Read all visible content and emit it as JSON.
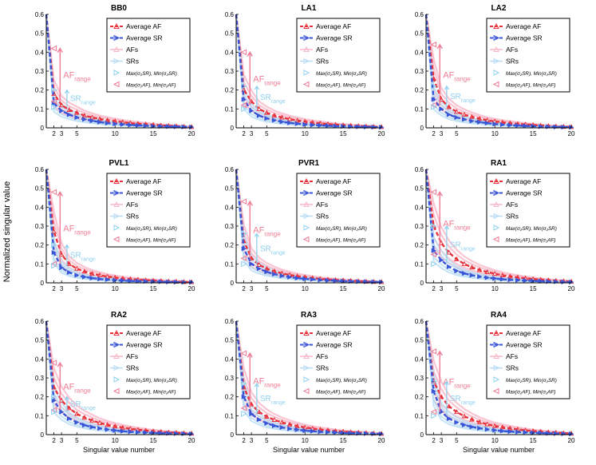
{
  "figure": {
    "ylabel": "Normalized singular value",
    "xlabel": "Singular value number",
    "colors": {
      "af": "#e8323c",
      "sr": "#3a56d8",
      "af_light": "#f7b7c7",
      "sr_light": "#b8dcf4",
      "af_range": "#f07a94",
      "sr_range": "#8fd0ee",
      "axis": "#000000"
    },
    "legend": {
      "average_af": "Average AF",
      "average_sr": "Average SR",
      "afs": "AFs",
      "srs": "SRs",
      "sr_minmax": "Max(σ₂SR), Min(σ₂SR)",
      "af_minmax": "Max(σ₂AF), Min(σ₂AF)"
    },
    "annotations": {
      "af_range": "AF",
      "af_range_sub": "range",
      "sr_range": "SR",
      "sr_range_sub": "range"
    }
  },
  "chart_data": [
    {
      "type": "line",
      "title": "BB0",
      "xlim": [
        1,
        20
      ],
      "ylim": [
        0,
        0.6
      ],
      "xticks": [
        2,
        3,
        5,
        10,
        15,
        20
      ],
      "yticks": [
        0,
        0.1,
        0.2,
        0.3,
        0.4,
        0.5,
        0.6
      ],
      "series": [
        {
          "name": "Average AF",
          "x": [
            1,
            2,
            3,
            4,
            5,
            6,
            7,
            8,
            9,
            10,
            11,
            12,
            13,
            14,
            15,
            16,
            17,
            18,
            19,
            20
          ],
          "values": [
            0.6,
            0.18,
            0.12,
            0.095,
            0.08,
            0.065,
            0.055,
            0.047,
            0.04,
            0.035,
            0.03,
            0.025,
            0.022,
            0.019,
            0.016,
            0.013,
            0.011,
            0.009,
            0.007,
            0.005
          ]
        },
        {
          "name": "Average SR",
          "x": [
            1,
            2,
            3,
            4,
            5,
            6,
            7,
            8,
            9,
            10,
            11,
            12,
            13,
            14,
            15,
            16,
            17,
            18,
            19,
            20
          ],
          "values": [
            0.6,
            0.13,
            0.09,
            0.07,
            0.055,
            0.045,
            0.037,
            0.03,
            0.025,
            0.021,
            0.018,
            0.015,
            0.013,
            0.011,
            0.009,
            0.008,
            0.007,
            0.006,
            0.005,
            0.004
          ]
        }
      ],
      "af_range": [
        0.14,
        0.42
      ],
      "sr_range": [
        0.11,
        0.2
      ]
    },
    {
      "type": "line",
      "title": "LA1",
      "xlim": [
        1,
        20
      ],
      "ylim": [
        0,
        0.6
      ],
      "xticks": [
        2,
        3,
        5,
        10,
        15,
        20
      ],
      "yticks": [
        0,
        0.1,
        0.2,
        0.3,
        0.4,
        0.5,
        0.6
      ],
      "series": [
        {
          "name": "Average AF",
          "x": [
            1,
            2,
            3,
            4,
            5,
            6,
            7,
            8,
            9,
            10,
            11,
            12,
            13,
            14,
            15,
            16,
            17,
            18,
            19,
            20
          ],
          "values": [
            0.6,
            0.2,
            0.14,
            0.1,
            0.08,
            0.065,
            0.055,
            0.046,
            0.039,
            0.033,
            0.028,
            0.024,
            0.02,
            0.017,
            0.014,
            0.012,
            0.01,
            0.008,
            0.006,
            0.005
          ]
        },
        {
          "name": "Average SR",
          "x": [
            1,
            2,
            3,
            4,
            5,
            6,
            7,
            8,
            9,
            10,
            11,
            12,
            13,
            14,
            15,
            16,
            17,
            18,
            19,
            20
          ],
          "values": [
            0.6,
            0.15,
            0.09,
            0.065,
            0.05,
            0.04,
            0.032,
            0.026,
            0.022,
            0.018,
            0.015,
            0.013,
            0.011,
            0.009,
            0.008,
            0.007,
            0.006,
            0.005,
            0.004,
            0.003
          ]
        }
      ],
      "af_range": [
        0.12,
        0.4
      ],
      "sr_range": [
        0.1,
        0.22
      ]
    },
    {
      "type": "line",
      "title": "LA2",
      "xlim": [
        1,
        20
      ],
      "ylim": [
        0,
        0.6
      ],
      "xticks": [
        2,
        3,
        5,
        10,
        15,
        20
      ],
      "yticks": [
        0,
        0.1,
        0.2,
        0.3,
        0.4,
        0.5,
        0.6
      ],
      "series": [
        {
          "name": "Average AF",
          "x": [
            1,
            2,
            3,
            4,
            5,
            6,
            7,
            8,
            9,
            10,
            11,
            12,
            13,
            14,
            15,
            16,
            17,
            18,
            19,
            20
          ],
          "values": [
            0.6,
            0.26,
            0.15,
            0.11,
            0.085,
            0.07,
            0.058,
            0.048,
            0.04,
            0.034,
            0.029,
            0.025,
            0.021,
            0.018,
            0.015,
            0.012,
            0.01,
            0.008,
            0.006,
            0.005
          ]
        },
        {
          "name": "Average SR",
          "x": [
            1,
            2,
            3,
            4,
            5,
            6,
            7,
            8,
            9,
            10,
            11,
            12,
            13,
            14,
            15,
            16,
            17,
            18,
            19,
            20
          ],
          "values": [
            0.6,
            0.15,
            0.1,
            0.07,
            0.055,
            0.045,
            0.036,
            0.03,
            0.025,
            0.02,
            0.017,
            0.014,
            0.012,
            0.01,
            0.009,
            0.007,
            0.006,
            0.005,
            0.004,
            0.003
          ]
        }
      ],
      "af_range": [
        0.12,
        0.44
      ],
      "sr_range": [
        0.11,
        0.22
      ]
    },
    {
      "type": "line",
      "title": "PVL1",
      "xlim": [
        1,
        20
      ],
      "ylim": [
        0,
        0.6
      ],
      "xticks": [
        2,
        3,
        5,
        10,
        15,
        20
      ],
      "yticks": [
        0,
        0.1,
        0.2,
        0.3,
        0.4,
        0.5,
        0.6
      ],
      "series": [
        {
          "name": "Average AF",
          "x": [
            1,
            2,
            3,
            4,
            5,
            6,
            7,
            8,
            9,
            10,
            11,
            12,
            13,
            14,
            15,
            16,
            17,
            18,
            19,
            20
          ],
          "values": [
            0.6,
            0.27,
            0.15,
            0.1,
            0.075,
            0.06,
            0.048,
            0.04,
            0.033,
            0.028,
            0.023,
            0.02,
            0.017,
            0.014,
            0.012,
            0.01,
            0.008,
            0.007,
            0.005,
            0.004
          ]
        },
        {
          "name": "Average SR",
          "x": [
            1,
            2,
            3,
            4,
            5,
            6,
            7,
            8,
            9,
            10,
            11,
            12,
            13,
            14,
            15,
            16,
            17,
            18,
            19,
            20
          ],
          "values": [
            0.6,
            0.16,
            0.08,
            0.055,
            0.04,
            0.031,
            0.025,
            0.02,
            0.017,
            0.014,
            0.012,
            0.01,
            0.009,
            0.008,
            0.007,
            0.006,
            0.005,
            0.004,
            0.003,
            0.003
          ]
        }
      ],
      "af_range": [
        0.1,
        0.48
      ],
      "sr_range": [
        0.09,
        0.2
      ]
    },
    {
      "type": "line",
      "title": "PVR1",
      "xlim": [
        1,
        20
      ],
      "ylim": [
        0,
        0.6
      ],
      "xticks": [
        2,
        3,
        5,
        10,
        15,
        20
      ],
      "yticks": [
        0,
        0.1,
        0.2,
        0.3,
        0.4,
        0.5,
        0.6
      ],
      "series": [
        {
          "name": "Average AF",
          "x": [
            1,
            2,
            3,
            4,
            5,
            6,
            7,
            8,
            9,
            10,
            11,
            12,
            13,
            14,
            15,
            16,
            17,
            18,
            19,
            20
          ],
          "values": [
            0.6,
            0.22,
            0.13,
            0.095,
            0.075,
            0.061,
            0.05,
            0.042,
            0.035,
            0.03,
            0.025,
            0.021,
            0.018,
            0.015,
            0.013,
            0.011,
            0.009,
            0.007,
            0.006,
            0.005
          ]
        },
        {
          "name": "Average SR",
          "x": [
            1,
            2,
            3,
            4,
            5,
            6,
            7,
            8,
            9,
            10,
            11,
            12,
            13,
            14,
            15,
            16,
            17,
            18,
            19,
            20
          ],
          "values": [
            0.6,
            0.18,
            0.1,
            0.075,
            0.058,
            0.046,
            0.037,
            0.03,
            0.025,
            0.021,
            0.018,
            0.015,
            0.013,
            0.011,
            0.009,
            0.008,
            0.007,
            0.006,
            0.005,
            0.004
          ]
        }
      ],
      "af_range": [
        0.13,
        0.43
      ],
      "sr_range": [
        0.1,
        0.26
      ]
    },
    {
      "type": "line",
      "title": "RA1",
      "xlim": [
        1,
        20
      ],
      "ylim": [
        0,
        0.6
      ],
      "xticks": [
        2,
        3,
        5,
        10,
        15,
        20
      ],
      "yticks": [
        0,
        0.1,
        0.2,
        0.3,
        0.4,
        0.5,
        0.6
      ],
      "series": [
        {
          "name": "Average AF",
          "x": [
            1,
            2,
            3,
            4,
            5,
            6,
            7,
            8,
            9,
            10,
            11,
            12,
            13,
            14,
            15,
            16,
            17,
            18,
            19,
            20
          ],
          "values": [
            0.6,
            0.3,
            0.21,
            0.16,
            0.125,
            0.1,
            0.082,
            0.068,
            0.057,
            0.048,
            0.04,
            0.034,
            0.029,
            0.024,
            0.02,
            0.017,
            0.014,
            0.011,
            0.009,
            0.007
          ]
        },
        {
          "name": "Average SR",
          "x": [
            1,
            2,
            3,
            4,
            5,
            6,
            7,
            8,
            9,
            10,
            11,
            12,
            13,
            14,
            15,
            16,
            17,
            18,
            19,
            20
          ],
          "values": [
            0.6,
            0.17,
            0.12,
            0.085,
            0.063,
            0.05,
            0.04,
            0.033,
            0.027,
            0.023,
            0.019,
            0.016,
            0.014,
            0.012,
            0.01,
            0.009,
            0.007,
            0.006,
            0.005,
            0.004
          ]
        }
      ],
      "af_range": [
        0.15,
        0.48
      ],
      "sr_range": [
        0.1,
        0.3
      ]
    },
    {
      "type": "line",
      "title": "RA2",
      "xlim": [
        1,
        20
      ],
      "ylim": [
        0,
        0.6
      ],
      "xticks": [
        2,
        3,
        5,
        10,
        15,
        20
      ],
      "yticks": [
        0,
        0.1,
        0.2,
        0.3,
        0.4,
        0.5,
        0.6
      ],
      "series": [
        {
          "name": "Average AF",
          "x": [
            1,
            2,
            3,
            4,
            5,
            6,
            7,
            8,
            9,
            10,
            11,
            12,
            13,
            14,
            15,
            16,
            17,
            18,
            19,
            20
          ],
          "values": [
            0.6,
            0.25,
            0.18,
            0.14,
            0.11,
            0.09,
            0.075,
            0.062,
            0.052,
            0.044,
            0.037,
            0.031,
            0.026,
            0.022,
            0.018,
            0.015,
            0.012,
            0.01,
            0.008,
            0.006
          ]
        },
        {
          "name": "Average SR",
          "x": [
            1,
            2,
            3,
            4,
            5,
            6,
            7,
            8,
            9,
            10,
            11,
            12,
            13,
            14,
            15,
            16,
            17,
            18,
            19,
            20
          ],
          "values": [
            0.6,
            0.18,
            0.12,
            0.085,
            0.065,
            0.05,
            0.04,
            0.033,
            0.027,
            0.022,
            0.018,
            0.015,
            0.013,
            0.011,
            0.009,
            0.008,
            0.007,
            0.006,
            0.005,
            0.004
          ]
        }
      ],
      "af_range": [
        0.13,
        0.38
      ],
      "sr_range": [
        0.12,
        0.2
      ]
    },
    {
      "type": "line",
      "title": "RA3",
      "xlim": [
        1,
        20
      ],
      "ylim": [
        0,
        0.6
      ],
      "xticks": [
        2,
        3,
        5,
        10,
        15,
        20
      ],
      "yticks": [
        0,
        0.1,
        0.2,
        0.3,
        0.4,
        0.5,
        0.6
      ],
      "series": [
        {
          "name": "Average AF",
          "x": [
            1,
            2,
            3,
            4,
            5,
            6,
            7,
            8,
            9,
            10,
            11,
            12,
            13,
            14,
            15,
            16,
            17,
            18,
            19,
            20
          ],
          "values": [
            0.6,
            0.25,
            0.16,
            0.12,
            0.095,
            0.078,
            0.065,
            0.054,
            0.045,
            0.038,
            0.032,
            0.027,
            0.023,
            0.019,
            0.016,
            0.013,
            0.011,
            0.009,
            0.007,
            0.005
          ]
        },
        {
          "name": "Average SR",
          "x": [
            1,
            2,
            3,
            4,
            5,
            6,
            7,
            8,
            9,
            10,
            11,
            12,
            13,
            14,
            15,
            16,
            17,
            18,
            19,
            20
          ],
          "values": [
            0.6,
            0.2,
            0.11,
            0.08,
            0.06,
            0.047,
            0.038,
            0.031,
            0.026,
            0.021,
            0.018,
            0.015,
            0.013,
            0.011,
            0.009,
            0.008,
            0.007,
            0.006,
            0.005,
            0.004
          ]
        }
      ],
      "af_range": [
        0.14,
        0.43
      ],
      "sr_range": [
        0.11,
        0.27
      ]
    },
    {
      "type": "line",
      "title": "RA4",
      "xlim": [
        1,
        20
      ],
      "ylim": [
        0,
        0.6
      ],
      "xticks": [
        2,
        3,
        5,
        10,
        15,
        20
      ],
      "yticks": [
        0,
        0.1,
        0.2,
        0.3,
        0.4,
        0.5,
        0.6
      ],
      "series": [
        {
          "name": "Average AF",
          "x": [
            1,
            2,
            3,
            4,
            5,
            6,
            7,
            8,
            9,
            10,
            11,
            12,
            13,
            14,
            15,
            16,
            17,
            18,
            19,
            20
          ],
          "values": [
            0.6,
            0.28,
            0.2,
            0.15,
            0.12,
            0.097,
            0.08,
            0.066,
            0.055,
            0.046,
            0.039,
            0.033,
            0.028,
            0.023,
            0.019,
            0.016,
            0.013,
            0.011,
            0.008,
            0.006
          ]
        },
        {
          "name": "Average SR",
          "x": [
            1,
            2,
            3,
            4,
            5,
            6,
            7,
            8,
            9,
            10,
            11,
            12,
            13,
            14,
            15,
            16,
            17,
            18,
            19,
            20
          ],
          "values": [
            0.6,
            0.23,
            0.12,
            0.085,
            0.065,
            0.051,
            0.041,
            0.034,
            0.028,
            0.023,
            0.019,
            0.016,
            0.014,
            0.012,
            0.01,
            0.009,
            0.007,
            0.006,
            0.005,
            0.004
          ]
        }
      ],
      "af_range": [
        0.12,
        0.44
      ],
      "sr_range": [
        0.1,
        0.28
      ]
    }
  ]
}
